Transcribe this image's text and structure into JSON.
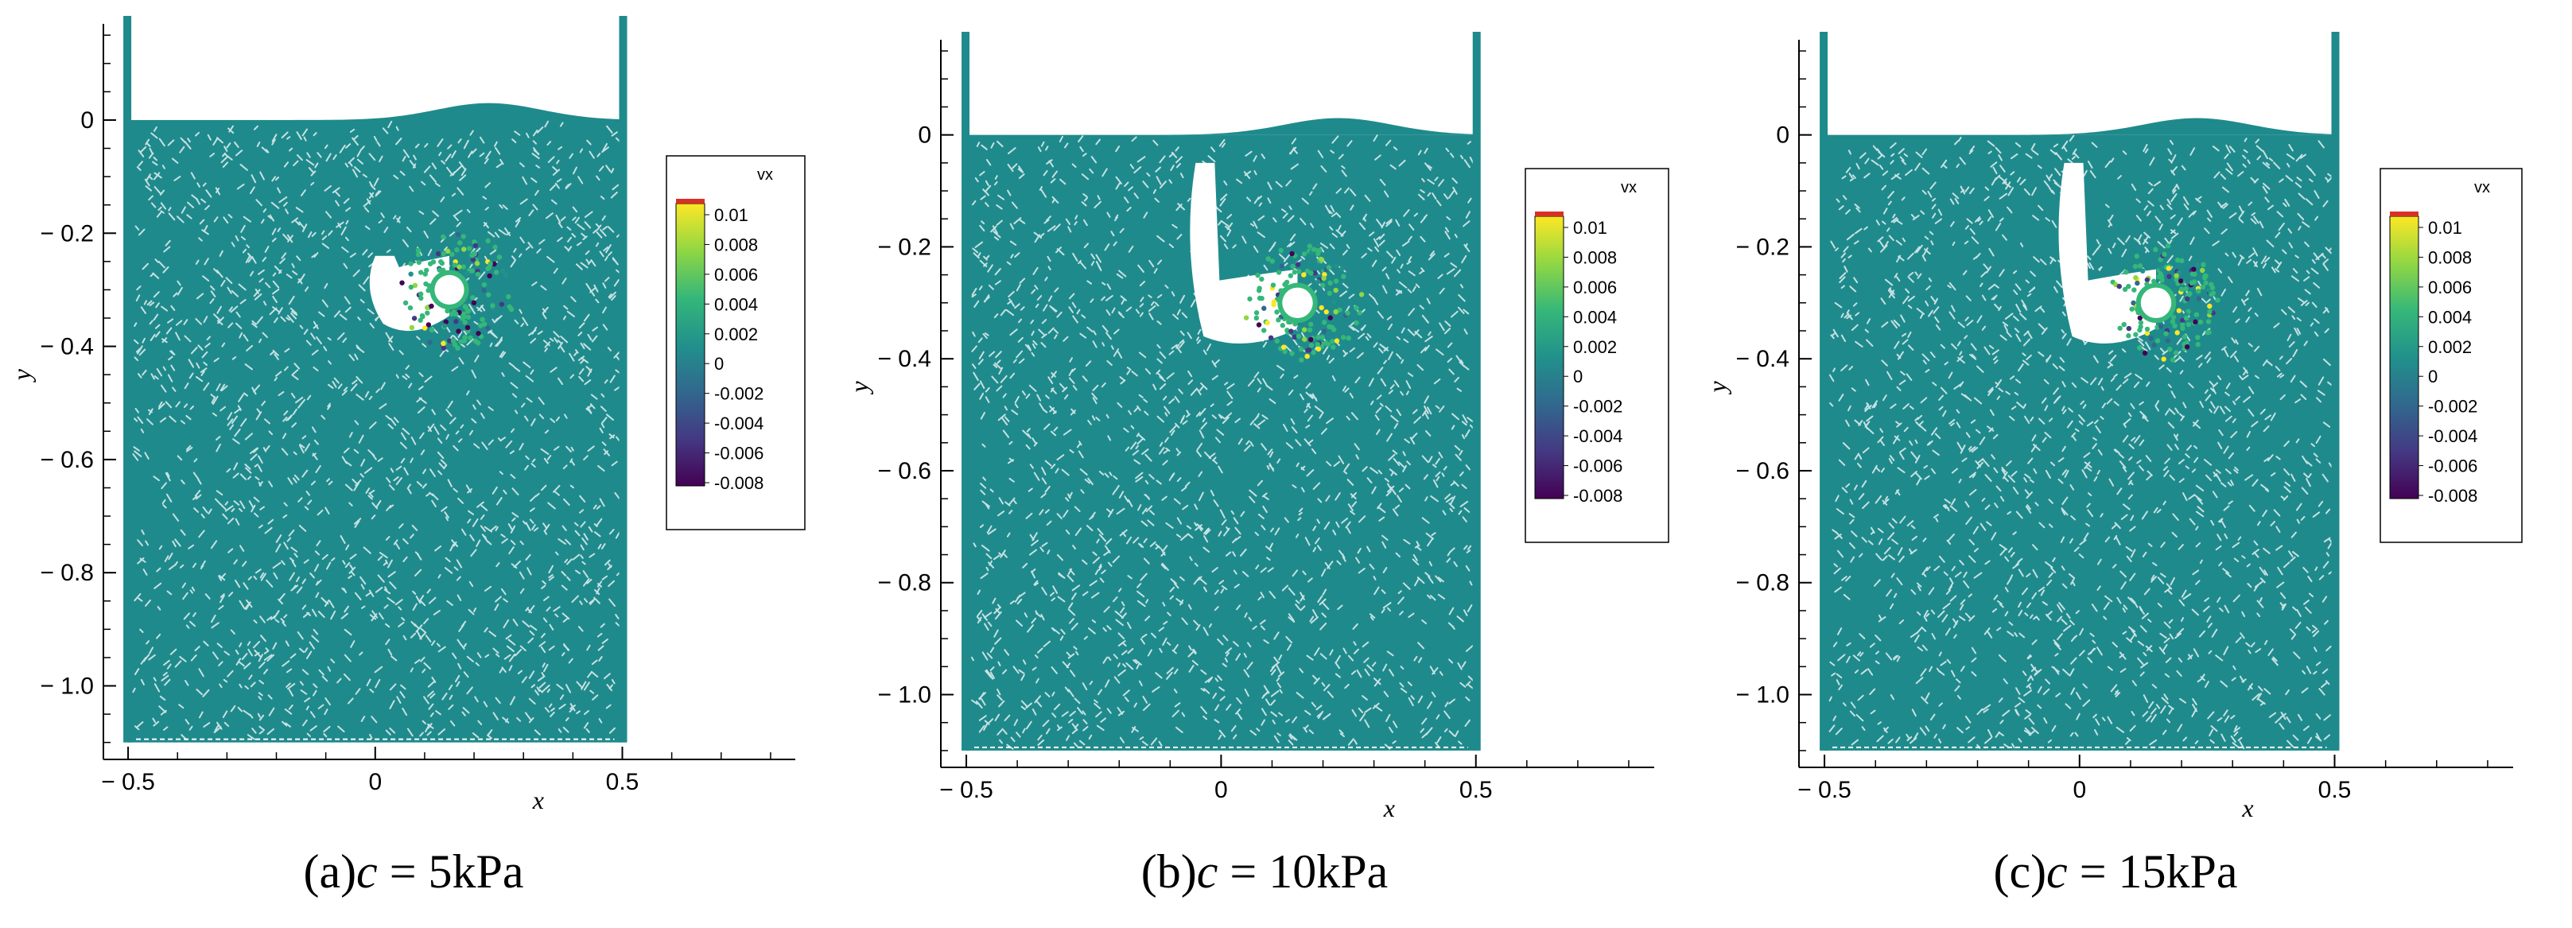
{
  "chart_data": [
    {
      "type": "scatter",
      "panel_label": "(a)",
      "caption_var": "c",
      "caption_eq": "=",
      "caption_value": "5",
      "caption_unit": "kPa",
      "xlabel": "x",
      "ylabel": "y",
      "xlim": [
        -0.55,
        0.85
      ],
      "ylim": [
        -1.13,
        0.17
      ],
      "x_ticks": [
        "-0.5",
        "0",
        "0.5"
      ],
      "y_ticks": [
        "0",
        "-0.2",
        "-0.4",
        "-0.6",
        "-0.8",
        "-1.0"
      ],
      "legend_title": "vx",
      "legend_labels": [
        "0.01",
        "0.008",
        "0.006",
        "0.004",
        "0.002",
        "0",
        "-0.002",
        "-0.004",
        "-0.006",
        "-0.008"
      ],
      "domain_x": [
        -0.5,
        0.5
      ],
      "domain_y": [
        -1.1,
        0.0
      ],
      "pipe_center": [
        0.15,
        -0.3
      ],
      "pipe_radius": 0.03,
      "cavity": {
        "x_range": [
          0.0,
          0.15
        ],
        "y_range": [
          -0.36,
          -0.24
        ]
      },
      "free_surface_heave_max": 0.03,
      "particle_color": "#1f8a8c",
      "pipe_color": "#35b779",
      "colormap": [
        "#440154",
        "#443983",
        "#31688e",
        "#21918c",
        "#35b779",
        "#90d743",
        "#fde725"
      ]
    },
    {
      "type": "scatter",
      "panel_label": "(b)",
      "caption_var": "c",
      "caption_eq": "=",
      "caption_value": "10",
      "caption_unit": "kPa",
      "xlabel": "x",
      "ylabel": "y",
      "xlim": [
        -0.55,
        0.85
      ],
      "ylim": [
        -1.13,
        0.17
      ],
      "x_ticks": [
        "-0.5",
        "0",
        "0.5"
      ],
      "y_ticks": [
        "0",
        "-0.2",
        "-0.4",
        "-0.6",
        "-0.8",
        "-1.0"
      ],
      "legend_title": "vx",
      "legend_labels": [
        "0.01",
        "0.008",
        "0.006",
        "0.004",
        "0.002",
        "0",
        "-0.002",
        "-0.004",
        "-0.006",
        "-0.008"
      ],
      "domain_x": [
        -0.5,
        0.5
      ],
      "domain_y": [
        -1.1,
        0.0
      ],
      "pipe_center": [
        0.15,
        -0.3
      ],
      "pipe_radius": 0.03,
      "cavity": {
        "x_range": [
          -0.05,
          0.15
        ],
        "y_range": [
          -0.36,
          -0.05
        ]
      },
      "free_surface_heave_max": 0.03,
      "particle_color": "#1f8a8c",
      "pipe_color": "#35b779",
      "colormap": [
        "#440154",
        "#443983",
        "#31688e",
        "#21918c",
        "#35b779",
        "#90d743",
        "#fde725"
      ]
    },
    {
      "type": "scatter",
      "panel_label": "(c)",
      "caption_var": "c",
      "caption_eq": "=",
      "caption_value": "15",
      "caption_unit": "kPa",
      "xlabel": "x",
      "ylabel": "y",
      "xlim": [
        -0.55,
        0.85
      ],
      "ylim": [
        -1.13,
        0.17
      ],
      "x_ticks": [
        "-0.5",
        "0",
        "0.5"
      ],
      "y_ticks": [
        "0",
        "-0.2",
        "-0.4",
        "-0.6",
        "-0.8",
        "-1.0"
      ],
      "legend_title": "vx",
      "legend_labels": [
        "0.01",
        "0.008",
        "0.006",
        "0.004",
        "0.002",
        "0",
        "-0.002",
        "-0.004",
        "-0.006",
        "-0.008"
      ],
      "domain_x": [
        -0.5,
        0.5
      ],
      "domain_y": [
        -1.1,
        0.0
      ],
      "pipe_center": [
        0.15,
        -0.3
      ],
      "pipe_radius": 0.03,
      "cavity": {
        "x_range": [
          -0.03,
          0.15
        ],
        "y_range": [
          -0.36,
          -0.05
        ]
      },
      "free_surface_heave_max": 0.03,
      "particle_color": "#1f8a8c",
      "pipe_color": "#35b779",
      "colormap": [
        "#440154",
        "#443983",
        "#31688e",
        "#21918c",
        "#35b779",
        "#90d743",
        "#fde725"
      ]
    }
  ]
}
